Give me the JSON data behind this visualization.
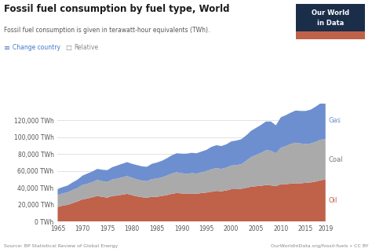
{
  "title": "Fossil fuel consumption by fuel type, World",
  "subtitle": "Fossil fuel consumption is given in terawatt-hour equivalents (TWh).",
  "source_left": "Source: BP Statistical Review of Global Energy",
  "source_right": "OurWorldInData.org/fossil-fuels • CC BY",
  "years": [
    1965,
    1966,
    1967,
    1968,
    1969,
    1970,
    1971,
    1972,
    1973,
    1974,
    1975,
    1976,
    1977,
    1978,
    1979,
    1980,
    1981,
    1982,
    1983,
    1984,
    1985,
    1986,
    1987,
    1988,
    1989,
    1990,
    1991,
    1992,
    1993,
    1994,
    1995,
    1996,
    1997,
    1998,
    1999,
    2000,
    2001,
    2002,
    2003,
    2004,
    2005,
    2006,
    2007,
    2008,
    2009,
    2010,
    2011,
    2012,
    2013,
    2014,
    2015,
    2016,
    2017,
    2018,
    2019
  ],
  "oil": [
    17500,
    19000,
    20000,
    22000,
    24000,
    26500,
    27500,
    29000,
    30500,
    29500,
    28500,
    30500,
    31000,
    32000,
    33000,
    31500,
    30000,
    29000,
    28500,
    29500,
    29500,
    30500,
    31500,
    33000,
    34000,
    33500,
    33000,
    33500,
    33000,
    34000,
    34500,
    35500,
    36500,
    36000,
    37000,
    38500,
    38500,
    39000,
    40000,
    41500,
    42000,
    42500,
    43500,
    43000,
    42000,
    44500,
    44500,
    45000,
    45500,
    45500,
    46000,
    46500,
    47500,
    49000,
    50000
  ],
  "coal": [
    14000,
    14500,
    14800,
    15500,
    16000,
    17000,
    17500,
    18000,
    19000,
    18500,
    18500,
    19500,
    20000,
    20500,
    21000,
    20500,
    20000,
    19500,
    19500,
    21000,
    21500,
    22000,
    23000,
    24000,
    24500,
    24000,
    23500,
    24000,
    24000,
    24500,
    25500,
    26500,
    27000,
    26500,
    27000,
    28000,
    28500,
    29000,
    32000,
    35000,
    37000,
    39000,
    41000,
    41000,
    39000,
    43000,
    45000,
    47000,
    48000,
    47000,
    46000,
    46000,
    47000,
    48000,
    47500
  ],
  "gas": [
    7000,
    7500,
    8000,
    9000,
    9800,
    11000,
    12000,
    12500,
    13000,
    13500,
    14000,
    14500,
    15500,
    16000,
    16500,
    16500,
    17000,
    17000,
    17000,
    18000,
    19000,
    19500,
    20500,
    21500,
    22500,
    23000,
    24000,
    24000,
    24000,
    24500,
    25000,
    26500,
    27000,
    27000,
    27500,
    28500,
    29000,
    29500,
    30000,
    31000,
    32000,
    33000,
    34000,
    34500,
    33000,
    36000,
    36500,
    37000,
    38000,
    38500,
    39000,
    40000,
    41500,
    43000,
    43500
  ],
  "oil_color": "#c0614a",
  "coal_color": "#aaaaaa",
  "gas_color": "#6e8fcf",
  "background_color": "#ffffff",
  "grid_color": "#dddddd",
  "title_color": "#1a1a1a",
  "subtitle_color": "#555555",
  "source_color": "#888888",
  "tick_color": "#555555",
  "owid_box_bg": "#1a2e4a",
  "owid_box_accent": "#c0614a",
  "ylim": [
    0,
    140000
  ],
  "yticks": [
    0,
    20000,
    40000,
    60000,
    80000,
    100000,
    120000
  ],
  "ytick_labels": [
    "0 TWh",
    "20,000 TWh",
    "40,000 TWh",
    "60,000 TWh",
    "80,000 TWh",
    "100,000 TWh",
    "120,000 TWh"
  ],
  "xticks": [
    1965,
    1970,
    1975,
    1980,
    1985,
    1990,
    1995,
    2000,
    2005,
    2010,
    2015,
    2019
  ]
}
